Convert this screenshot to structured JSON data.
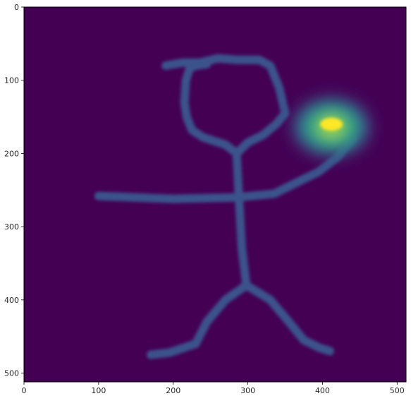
{
  "plot": {
    "colormap": "viridis",
    "background_color": "#440154",
    "stroke_color": "#3b528b",
    "glow_colors": [
      "#3b528b",
      "#21918c",
      "#5ec962",
      "#fde725"
    ],
    "x_axis": {
      "range": [
        0,
        512
      ],
      "ticks": [
        {
          "value": 0,
          "label": "0"
        },
        {
          "value": 100,
          "label": "100"
        },
        {
          "value": 200,
          "label": "200"
        },
        {
          "value": 300,
          "label": "300"
        },
        {
          "value": 400,
          "label": "400"
        },
        {
          "value": 500,
          "label": "500"
        }
      ]
    },
    "y_axis": {
      "range": [
        512,
        0
      ],
      "inverted": true,
      "ticks": [
        {
          "value": 0,
          "label": "0"
        },
        {
          "value": 100,
          "label": "100"
        },
        {
          "value": 200,
          "label": "200"
        },
        {
          "value": 300,
          "label": "300"
        },
        {
          "value": 400,
          "label": "400"
        },
        {
          "value": 500,
          "label": "500"
        }
      ]
    },
    "figure": {
      "head": [
        [
          190,
          80
        ],
        [
          212,
          76
        ],
        [
          235,
          76
        ],
        [
          260,
          70
        ],
        [
          285,
          72
        ],
        [
          315,
          72
        ],
        [
          330,
          80
        ],
        [
          342,
          110
        ],
        [
          350,
          145
        ],
        [
          338,
          160
        ],
        [
          320,
          175
        ],
        [
          300,
          185
        ],
        [
          285,
          200
        ],
        [
          270,
          188
        ],
        [
          240,
          178
        ],
        [
          225,
          168
        ],
        [
          218,
          150
        ],
        [
          215,
          130
        ],
        [
          217,
          100
        ],
        [
          222,
          84
        ],
        [
          230,
          80
        ],
        [
          245,
          78
        ]
      ],
      "neck": [
        [
          285,
          200
        ],
        [
          288,
          260
        ]
      ],
      "left_arm": [
        [
          285,
          260
        ],
        [
          200,
          262
        ],
        [
          100,
          258
        ]
      ],
      "right_arm": [
        [
          285,
          260
        ],
        [
          335,
          255
        ],
        [
          365,
          240
        ],
        [
          395,
          225
        ],
        [
          420,
          205
        ],
        [
          440,
          180
        ]
      ],
      "body": [
        [
          288,
          260
        ],
        [
          292,
          330
        ],
        [
          298,
          380
        ]
      ],
      "left_leg": [
        [
          298,
          380
        ],
        [
          270,
          400
        ],
        [
          245,
          430
        ],
        [
          230,
          460
        ],
        [
          195,
          472
        ],
        [
          170,
          475
        ]
      ],
      "right_leg": [
        [
          298,
          380
        ],
        [
          330,
          400
        ],
        [
          355,
          430
        ],
        [
          375,
          455
        ],
        [
          395,
          465
        ],
        [
          410,
          470
        ]
      ],
      "hand_glow": {
        "x": 412,
        "y": 160
      }
    }
  }
}
